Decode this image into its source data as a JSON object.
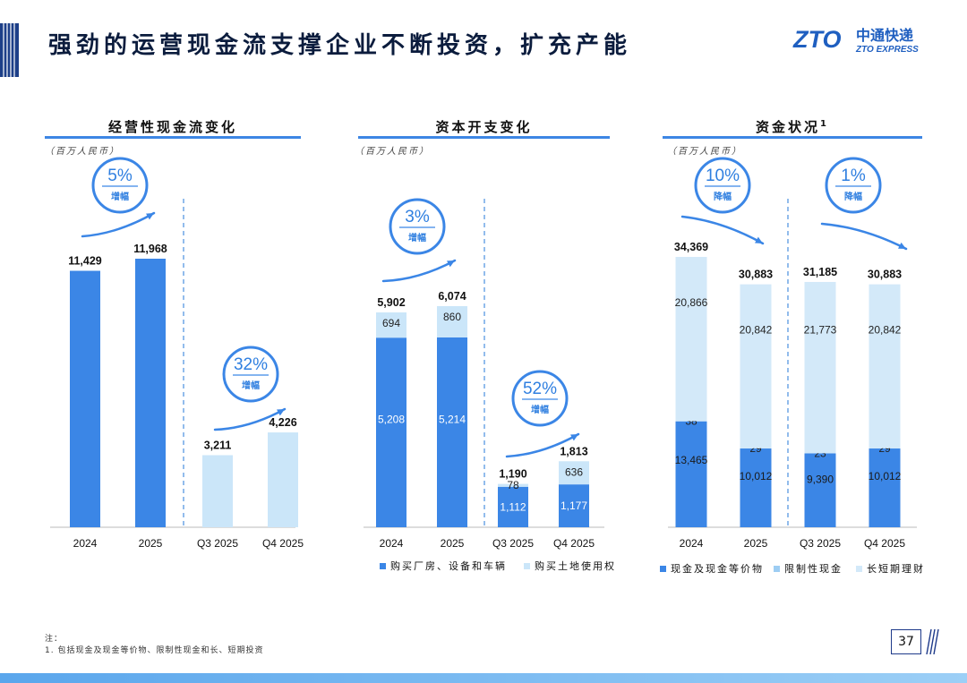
{
  "header": {
    "title": "强劲的运营现金流支撑企业不断投资，扩充产能",
    "logo_cn": "中通快递",
    "logo_en": "ZTO EXPRESS",
    "logo_mark": "ZTO"
  },
  "colors": {
    "dark_blue": "#3b86e6",
    "mid_blue": "#9dcdf3",
    "light_blue": "#cfe6f8",
    "rule_blue": "#3d86e4",
    "circle_border": "#3b86e6"
  },
  "chart_data": [
    {
      "type": "bar",
      "title": "经营性现金流变化",
      "unit": "（百万人民币）",
      "categories": [
        "2024",
        "2025",
        "Q3 2025",
        "Q4 2025"
      ],
      "values": [
        11429,
        11968,
        3211,
        4226
      ],
      "value_labels": [
        "11,429",
        "11,968",
        "3,211",
        "4,226"
      ],
      "bar_colors": [
        "#3b86e6",
        "#3b86e6",
        "#cbe6f9",
        "#cbe6f9"
      ],
      "ylim": [
        0,
        13000
      ],
      "annotations": [
        {
          "pct": "5%",
          "label": "增幅",
          "direction": "up"
        },
        {
          "pct": "32%",
          "label": "增幅",
          "direction": "up"
        }
      ]
    },
    {
      "type": "bar",
      "stacked": true,
      "title": "资本开支变化",
      "unit": "（百万人民币）",
      "categories": [
        "2024",
        "2025",
        "Q3 2025",
        "Q4 2025"
      ],
      "series": [
        {
          "name": "购买厂房、设备和车辆",
          "values": [
            5208,
            5214,
            1112,
            1177
          ],
          "labels": [
            "5,208",
            "5,214",
            "1,112",
            "1,177"
          ],
          "color": "#3b86e6"
        },
        {
          "name": "购买土地使用权",
          "values": [
            694,
            860,
            78,
            636
          ],
          "labels": [
            "694",
            "860",
            "78",
            "636"
          ],
          "color": "#cbe6f9"
        }
      ],
      "totals": [
        5902,
        6074,
        1190,
        1813
      ],
      "total_labels": [
        "5,902",
        "6,074",
        "1,190",
        "1,813"
      ],
      "ylim": [
        0,
        7000
      ],
      "annotations": [
        {
          "pct": "3%",
          "label": "增幅",
          "direction": "up"
        },
        {
          "pct": "52%",
          "label": "增幅",
          "direction": "up"
        }
      ]
    },
    {
      "type": "bar",
      "stacked": true,
      "title": "资金状况",
      "title_sup": "1",
      "unit": "（百万人民币）",
      "categories": [
        "2024",
        "2025",
        "Q3 2025",
        "Q4 2025"
      ],
      "series": [
        {
          "name": "现金及现金等价物",
          "values": [
            13465,
            10012,
            9390,
            10012
          ],
          "labels": [
            "13,465",
            "10,012",
            "9,390",
            "10,012"
          ],
          "color": "#3b86e6"
        },
        {
          "name": "限制性现金",
          "values": [
            38,
            29,
            23,
            29
          ],
          "labels": [
            "38",
            "29",
            "23",
            "29"
          ],
          "color": "#9dcdf3"
        },
        {
          "name": "长短期理财",
          "values": [
            20866,
            20842,
            21773,
            20842
          ],
          "labels": [
            "20,866",
            "20,842",
            "21,773",
            "20,842"
          ],
          "color": "#d3e9f9"
        }
      ],
      "totals": [
        34369,
        30883,
        31185,
        30883
      ],
      "total_labels": [
        "34,369",
        "30,883",
        "31,185",
        "30,883"
      ],
      "ylim": [
        0,
        40000
      ],
      "annotations": [
        {
          "pct": "10%",
          "label": "降幅",
          "direction": "down"
        },
        {
          "pct": "1%",
          "label": "降幅",
          "direction": "down"
        }
      ]
    }
  ],
  "footnote": {
    "label": "注：",
    "text": "1. 包括现金及现金等价物、限制性现金和长、短期投资"
  },
  "page_number": "37"
}
